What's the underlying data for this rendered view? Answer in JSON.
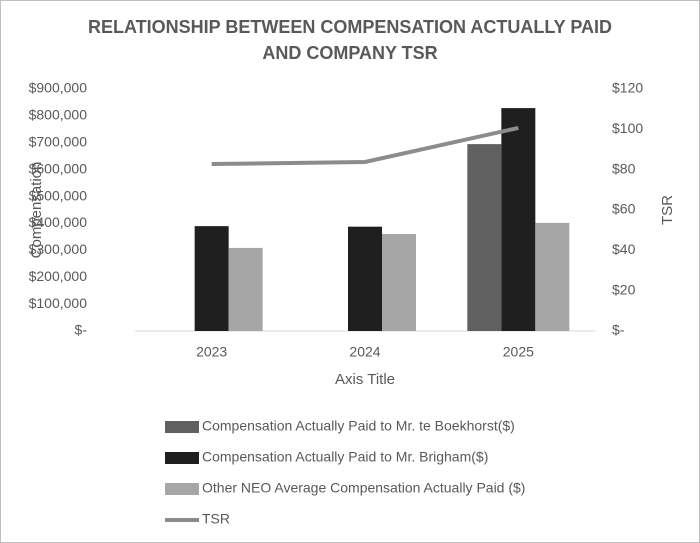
{
  "chart_data": {
    "type": "bar",
    "title": [
      "RELATIONSHIP BETWEEN COMPENSATION ACTUALLY PAID",
      "AND COMPANY TSR"
    ],
    "x_label": "Axis Title",
    "y_label": "Compensation",
    "y2_label": "TSR",
    "categories": [
      "2023",
      "2024",
      "2025"
    ],
    "series": [
      {
        "name": "Compensation Actually Paid to Mr. te Boekhorst($)",
        "color": "#606060",
        "values": [
          null,
          null,
          695000
        ]
      },
      {
        "name": "Compensation Actually Paid to Mr. Brigham($)",
        "color": "#1f1f1f",
        "values": [
          390000,
          388000,
          829000
        ]
      },
      {
        "name": "Other NEO Average Compensation Actually Paid ($)",
        "color": "#a6a6a6",
        "values": [
          309000,
          361000,
          402000
        ]
      },
      {
        "name": "TSR",
        "color": "#8c8c8c",
        "type": "line",
        "axis": "y2",
        "values": [
          82.8,
          83.8,
          100.7
        ]
      }
    ],
    "ylim": [
      0,
      900000
    ],
    "yticks": [
      {
        "value": 0,
        "label": "$-"
      },
      {
        "value": 100000,
        "label": "$100,000"
      },
      {
        "value": 200000,
        "label": "$200,000"
      },
      {
        "value": 300000,
        "label": "$300,000"
      },
      {
        "value": 400000,
        "label": "$400,000"
      },
      {
        "value": 500000,
        "label": "$500,000"
      },
      {
        "value": 600000,
        "label": "$600,000"
      },
      {
        "value": 700000,
        "label": "$700,000"
      },
      {
        "value": 800000,
        "label": "$800,000"
      },
      {
        "value": 900000,
        "label": "$900,000"
      }
    ],
    "y2lim": [
      0,
      120
    ],
    "y2ticks": [
      {
        "value": 0,
        "label": "$-"
      },
      {
        "value": 20,
        "label": "$20"
      },
      {
        "value": 40,
        "label": "$40"
      },
      {
        "value": 60,
        "label": "$60"
      },
      {
        "value": 80,
        "label": "$80"
      },
      {
        "value": 100,
        "label": "$100"
      },
      {
        "value": 120,
        "label": "$120"
      }
    ],
    "grid": false,
    "legend": "bottom"
  }
}
